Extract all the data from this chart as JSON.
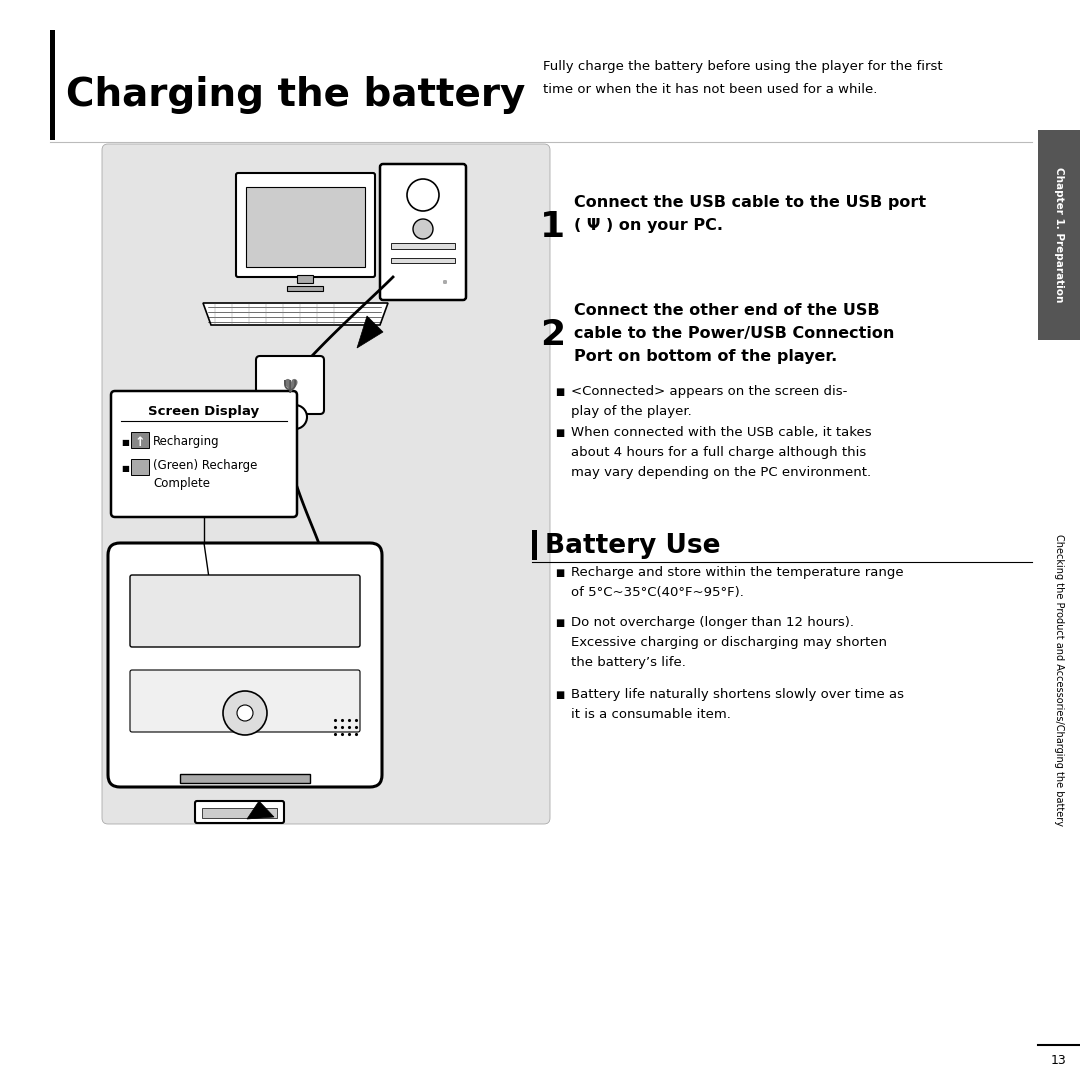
{
  "page_bg": "#ffffff",
  "sidebar_bg": "#555555",
  "sidebar_text_color": "#ffffff",
  "illustration_bg": "#e4e4e4",
  "title": "Charging the battery",
  "title_desc_line1": "Fully charge the battery before using the player for the first",
  "title_desc_line2": "time or when the it has not been used for a while.",
  "step1_num": "1",
  "step1_line1": "Connect the USB cable to the USB port",
  "step1_line2": "( Ψ ) on your PC.",
  "step2_num": "2",
  "step2_line1": "Connect the other end of the USB",
  "step2_line2": "cable to the Power/USB Connection",
  "step2_line3": "Port on bottom of the player.",
  "b1_line1": "<Connected> appears on the screen dis-",
  "b1_line2": "play of the player.",
  "b2_line1": "When connected with the USB cable, it takes",
  "b2_line2": "about 4 hours for a full charge although this",
  "b2_line3": "may vary depending on the PC environment.",
  "battery_title": "Battery Use",
  "bb1_l1": "Recharge and store within the temperature range",
  "bb1_l2": "of 5°C~35°C(40°F~95°F).",
  "bb2_l1": "Do not overcharge (longer than 12 hours).",
  "bb2_l2": "Excessive charging or discharging may shorten",
  "bb2_l3": "the battery’s life.",
  "bb3_l1": "Battery life naturally shortens slowly over time as",
  "bb3_l2": "it is a consumable item.",
  "sd_title": "Screen Display",
  "sd_item1": "Recharging",
  "sd_item2a": "(Green) Recharge",
  "sd_item2b": "Complete",
  "sidebar_ch": "Chapter 1. Preparation",
  "sidebar_sub": "Checking the Product and Accessories/Charging the battery",
  "page_num": "13"
}
